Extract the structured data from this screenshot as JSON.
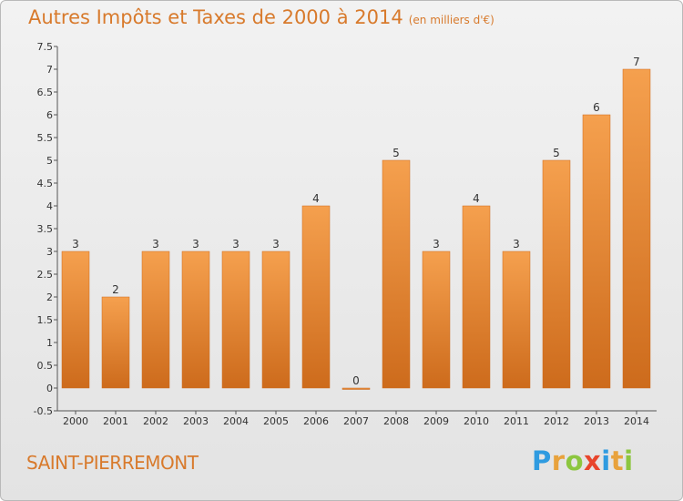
{
  "title": {
    "main": "Autres Impôts et Taxes de 2000 à 2014",
    "unit": "(en milliers d'€)"
  },
  "commune": "SAINT-PIERREMONT",
  "logo": {
    "text": "Proxiti",
    "letter_colors": [
      "#2f9be0",
      "#e8a23c",
      "#8cc63f",
      "#e8452c",
      "#2f9be0",
      "#e8a23c",
      "#8cc63f"
    ]
  },
  "colors": {
    "title": "#d87a2c",
    "bar_light": "#f5a04e",
    "bar_dark": "#cd6b1c",
    "axis": "#555555",
    "tick_label": "#333333"
  },
  "chart_data": {
    "type": "bar",
    "title": "Autres Impôts et Taxes de 2000 à 2014",
    "ylabel": "(en milliers d'€)",
    "xlabel": "",
    "categories": [
      "2000",
      "2001",
      "2002",
      "2003",
      "2004",
      "2005",
      "2006",
      "2007",
      "2008",
      "2009",
      "2010",
      "2011",
      "2012",
      "2013",
      "2014"
    ],
    "values": [
      3,
      2,
      3,
      3,
      3,
      3,
      4,
      0,
      5,
      3,
      4,
      3,
      5,
      6,
      7
    ],
    "data_labels": [
      "3",
      "2",
      "3",
      "3",
      "3",
      "3",
      "4",
      "0",
      "5",
      "3",
      "4",
      "3",
      "5",
      "6",
      "7"
    ],
    "ylim": [
      -0.5,
      7.5
    ],
    "yticks": [
      -0.5,
      0,
      0.5,
      1,
      1.5,
      2,
      2.5,
      3,
      3.5,
      4,
      4.5,
      5,
      5.5,
      6,
      6.5,
      7,
      7.5
    ],
    "ytick_labels": [
      "-0.5",
      "0",
      "0.5",
      "1",
      "1.5",
      "2",
      "2.5",
      "3",
      "3.5",
      "4",
      "4.5",
      "5",
      "5.5",
      "6",
      "6.5",
      "7",
      "7.5"
    ],
    "grid": false,
    "legend": "none"
  }
}
